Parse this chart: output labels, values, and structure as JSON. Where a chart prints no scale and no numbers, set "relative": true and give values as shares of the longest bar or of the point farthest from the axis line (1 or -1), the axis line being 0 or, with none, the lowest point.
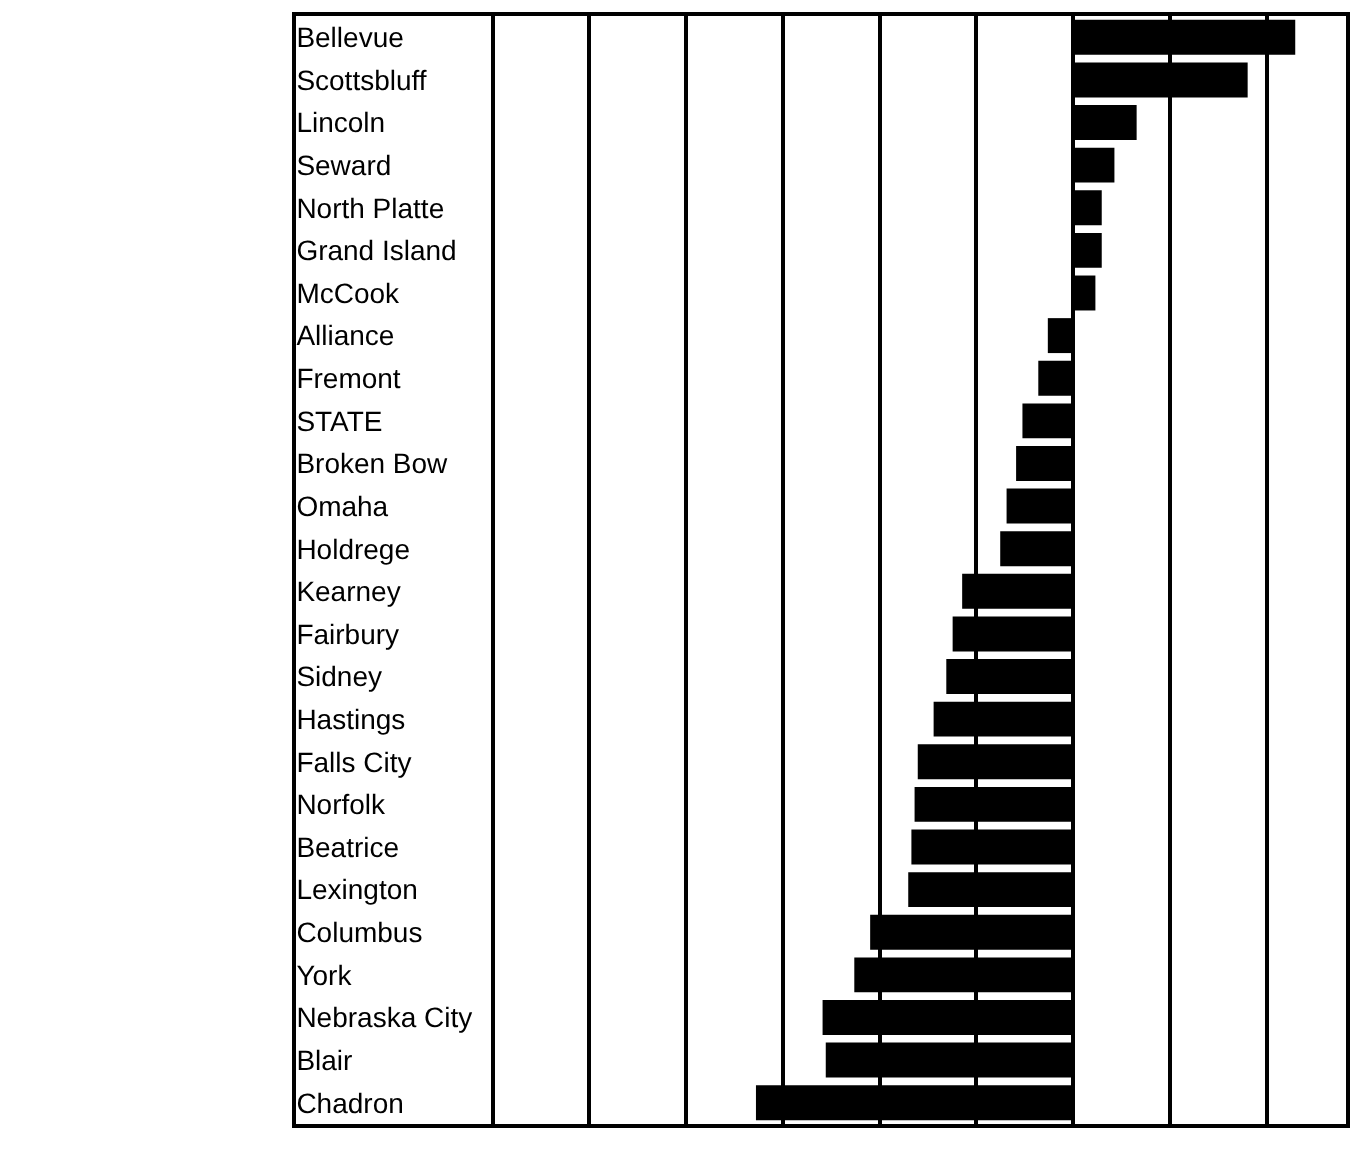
{
  "chart_data": {
    "type": "bar",
    "orientation": "horizontal",
    "relative": true,
    "grid": "x",
    "categories": [
      "Bellevue",
      "Scottsbluff",
      "Lincoln",
      "Seward",
      "North Platte",
      "Grand Island",
      "McCook",
      "Alliance",
      "Fremont",
      "STATE",
      "Broken Bow",
      "Omaha",
      "Holdrege",
      "Kearney",
      "Fairbury",
      "Sidney",
      "Hastings",
      "Falls City",
      "Norfolk",
      "Beatrice",
      "Lexington",
      "Columbus",
      "York",
      "Nebraska City",
      "Blair",
      "Chadron"
    ],
    "values": [
      0.7,
      0.55,
      0.2,
      0.13,
      0.09,
      0.09,
      0.07,
      -0.08,
      -0.11,
      -0.16,
      -0.18,
      -0.21,
      -0.23,
      -0.35,
      -0.38,
      -0.4,
      -0.44,
      -0.49,
      -0.5,
      -0.51,
      -0.52,
      -0.64,
      -0.69,
      -0.79,
      -0.78,
      -1
    ],
    "color": "#000000"
  }
}
